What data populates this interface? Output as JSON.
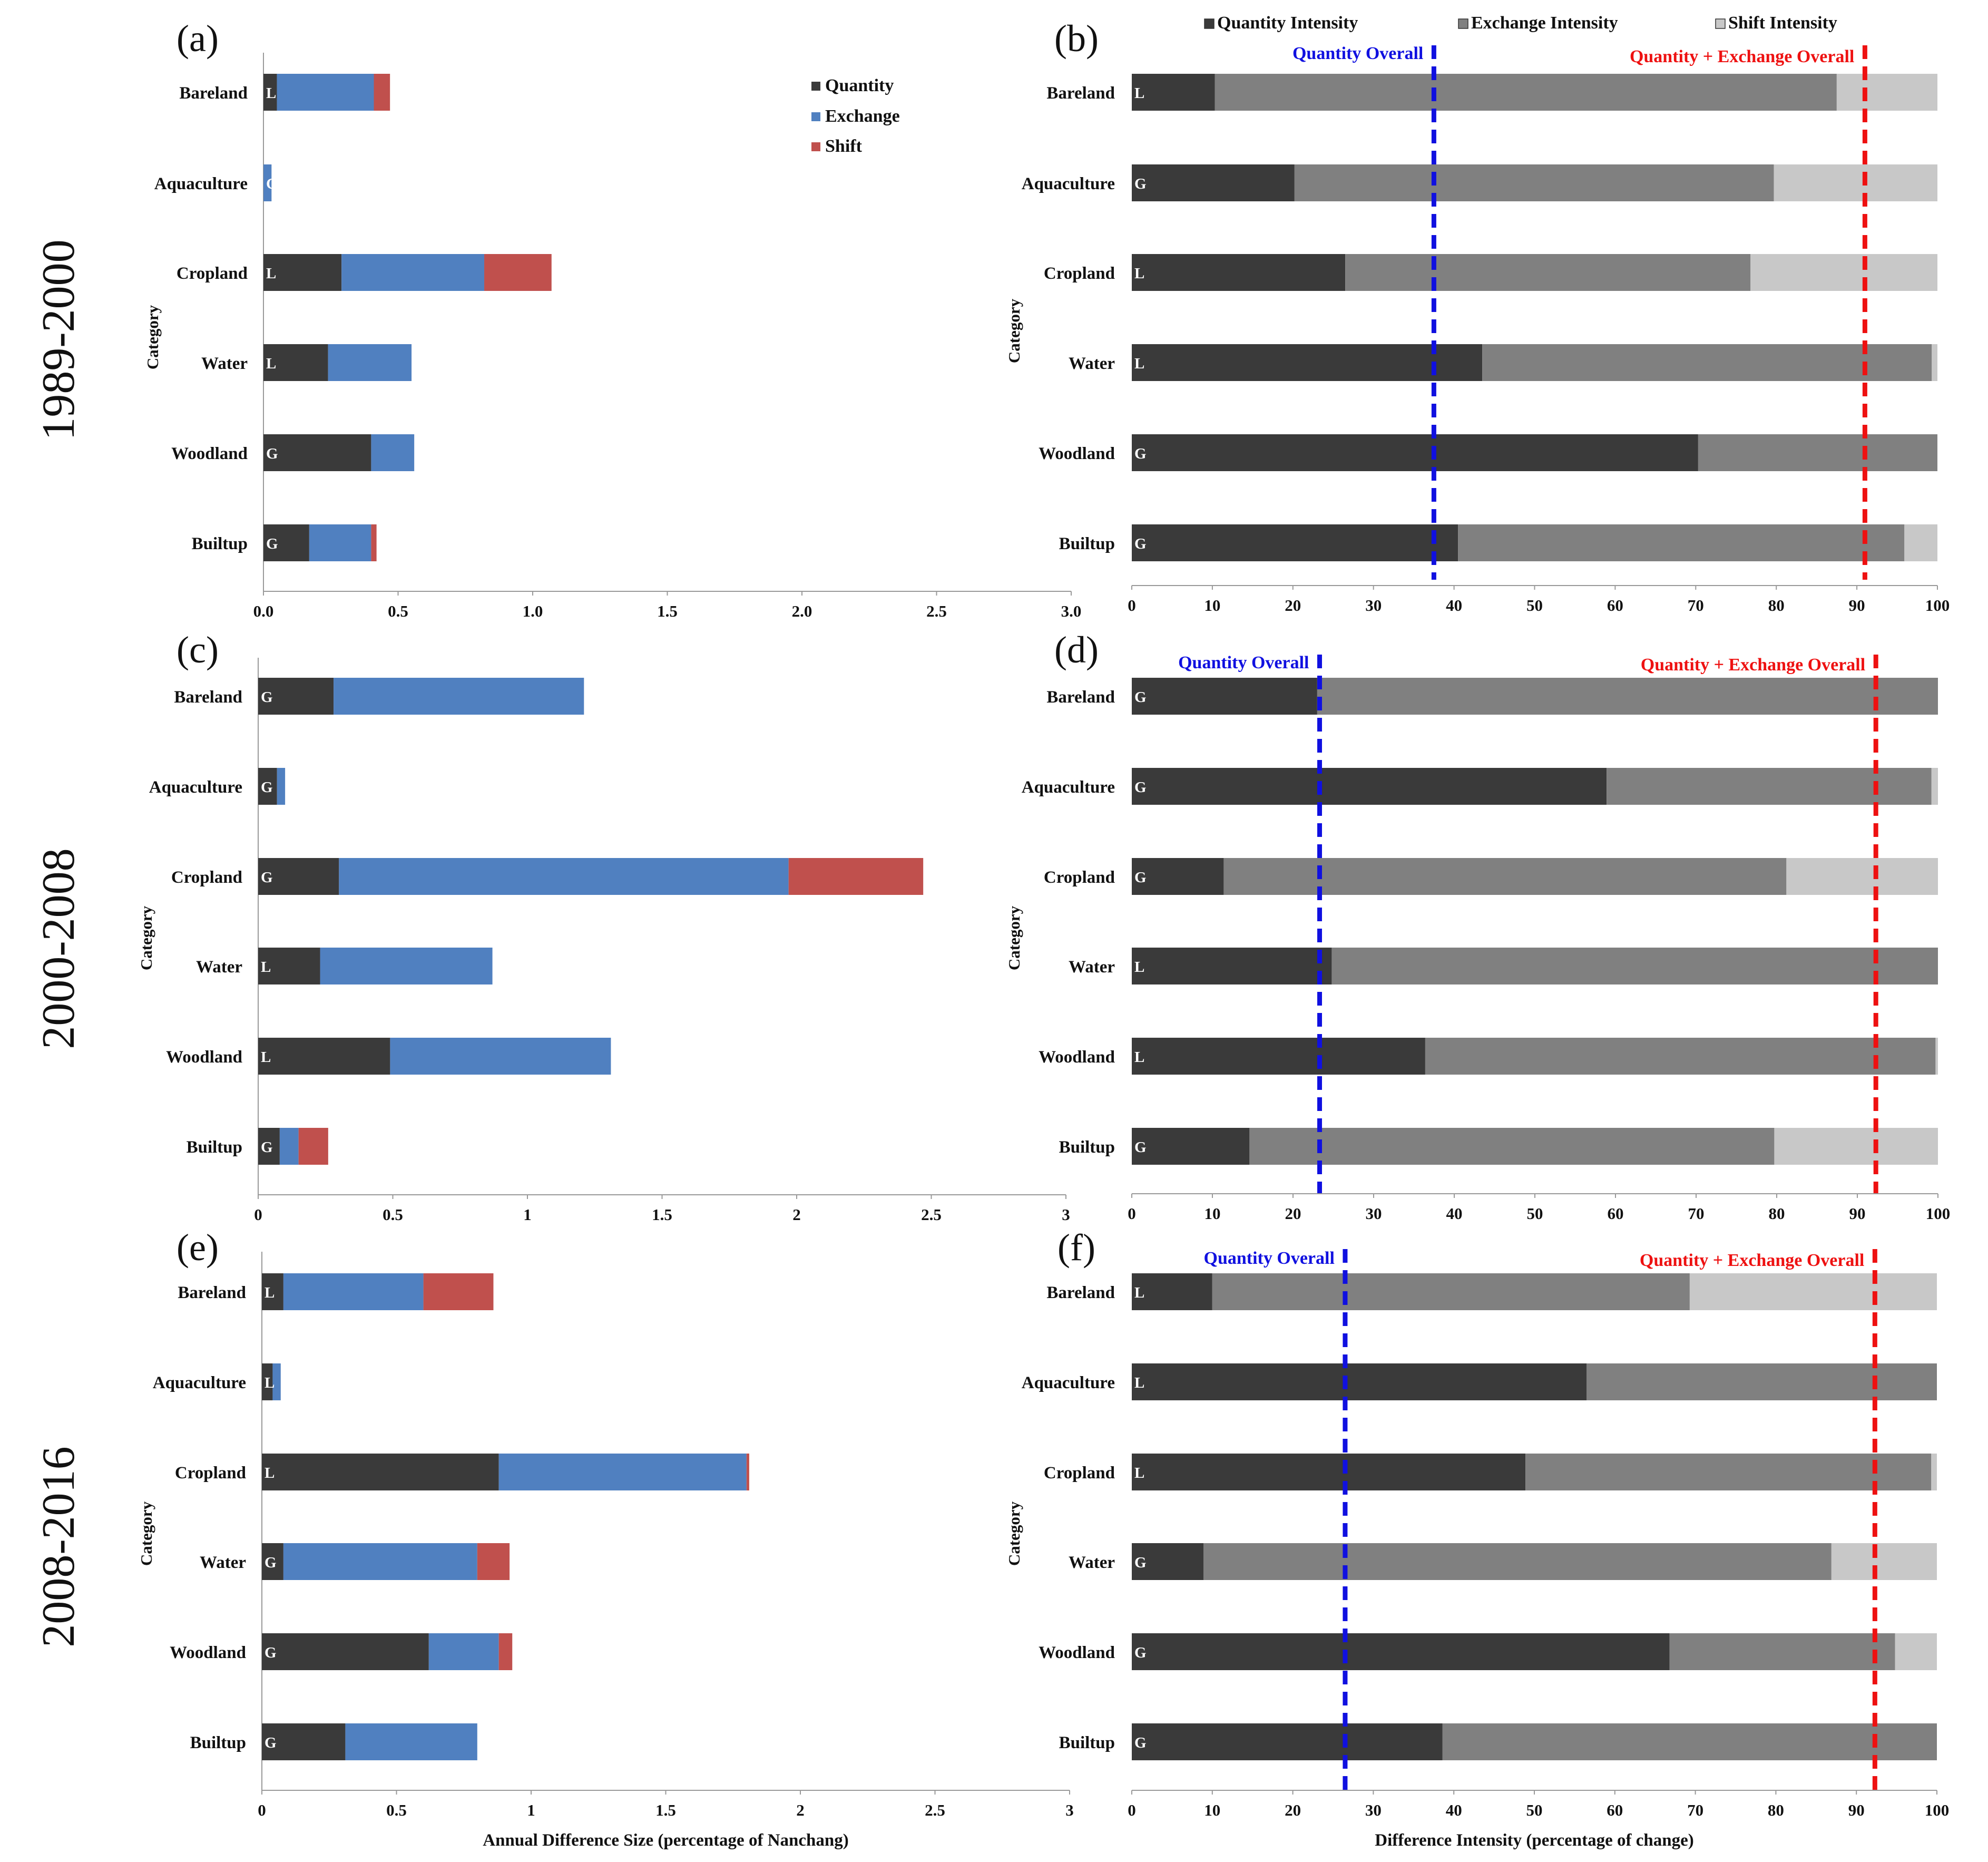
{
  "periods": [
    "1989-2000",
    "2000-2008",
    "2008-2016"
  ],
  "colors": {
    "quantity": "#3a3a3a",
    "exchange": "#5080c0",
    "shift": "#c0504d",
    "quantity_intensity": "#3a3a3a",
    "exchange_intensity": "#808080",
    "shift_intensity": "#c8c8c8",
    "quantity_overall": "#1010e0",
    "quantity_exchange_overall": "#ee1111"
  },
  "size_legend": [
    "Quantity",
    "Exchange",
    "Shift"
  ],
  "intensity_legend": [
    "Quantity Intensity",
    "Exchange Intensity",
    "Shift Intensity"
  ],
  "size_axis_title": "Annual Difference Size (percentage of Nanchang)",
  "intensity_axis_title": "Difference Intensity (percentage of change)",
  "y_axis_title": "Category",
  "chart_data": [
    {
      "panel": "(a)",
      "period": "1989-2000",
      "type": "bar",
      "stacked": true,
      "orientation": "horizontal",
      "categories": [
        "Bareland",
        "Aquaculture",
        "Cropland",
        "Water",
        "Woodland",
        "Builtup"
      ],
      "gain_loss": [
        "L",
        "G",
        "L",
        "L",
        "G",
        "G"
      ],
      "series": [
        {
          "name": "Quantity",
          "values": [
            0.05,
            0.0,
            0.29,
            0.24,
            0.4,
            0.17
          ]
        },
        {
          "name": "Exchange",
          "values": [
            0.36,
            0.03,
            0.53,
            0.31,
            0.16,
            0.23
          ]
        },
        {
          "name": "Shift",
          "values": [
            0.06,
            0.0,
            0.25,
            0.0,
            0.0,
            0.02
          ]
        }
      ],
      "xlim": [
        0,
        3
      ],
      "xticks": [
        "0.0",
        "0.5",
        "1.0",
        "1.5",
        "2.0",
        "2.5",
        "3.0"
      ],
      "legend": "top-right"
    },
    {
      "panel": "(b)",
      "period": "1989-2000",
      "type": "bar",
      "stacked": true,
      "orientation": "horizontal",
      "categories": [
        "Bareland",
        "Aquaculture",
        "Cropland",
        "Water",
        "Woodland",
        "Builtup"
      ],
      "gain_loss": [
        "L",
        "G",
        "L",
        "L",
        "G",
        "G"
      ],
      "series": [
        {
          "name": "Quantity Intensity",
          "values": [
            10.3,
            20.2,
            26.5,
            43.5,
            70.3,
            40.5
          ]
        },
        {
          "name": "Exchange Intensity",
          "values": [
            77.2,
            59.5,
            50.3,
            55.8,
            29.7,
            55.4
          ]
        },
        {
          "name": "Shift Intensity",
          "values": [
            12.5,
            20.3,
            23.2,
            0.7,
            0.0,
            4.1
          ]
        }
      ],
      "reference_lines": [
        {
          "label": "Quantity Overall",
          "value": 37.5
        },
        {
          "label": "Quantity + Exchange Overall",
          "value": 91
        }
      ],
      "xlim": [
        0,
        100
      ],
      "xticks": [
        "0",
        "10",
        "20",
        "30",
        "40",
        "50",
        "60",
        "70",
        "80",
        "90",
        "100"
      ],
      "legend": "top"
    },
    {
      "panel": "(c)",
      "period": "2000-2008",
      "type": "bar",
      "stacked": true,
      "orientation": "horizontal",
      "categories": [
        "Bareland",
        "Aquaculture",
        "Cropland",
        "Water",
        "Woodland",
        "Builtup"
      ],
      "gain_loss": [
        "G",
        "G",
        "G",
        "L",
        "L",
        "G"
      ],
      "series": [
        {
          "name": "Quantity",
          "values": [
            0.28,
            0.07,
            0.3,
            0.23,
            0.49,
            0.08
          ]
        },
        {
          "name": "Exchange",
          "values": [
            0.93,
            0.03,
            1.67,
            0.64,
            0.82,
            0.07
          ]
        },
        {
          "name": "Shift",
          "values": [
            0.0,
            0.0,
            0.5,
            0.0,
            0.0,
            0.11
          ]
        }
      ],
      "xlim": [
        0,
        3
      ],
      "xticks": [
        "0",
        "0.5",
        "1",
        "1.5",
        "2",
        "2.5",
        "3"
      ],
      "legend": "none"
    },
    {
      "panel": "(d)",
      "period": "2000-2008",
      "type": "bar",
      "stacked": true,
      "orientation": "horizontal",
      "categories": [
        "Bareland",
        "Aquaculture",
        "Cropland",
        "Water",
        "Woodland",
        "Builtup"
      ],
      "gain_loss": [
        "G",
        "G",
        "G",
        "L",
        "L",
        "G"
      ],
      "series": [
        {
          "name": "Quantity Intensity",
          "values": [
            23.0,
            58.9,
            11.4,
            24.8,
            36.4,
            14.6
          ]
        },
        {
          "name": "Exchange Intensity",
          "values": [
            77.0,
            40.3,
            69.8,
            75.2,
            63.3,
            65.1
          ]
        },
        {
          "name": "Shift Intensity",
          "values": [
            0.0,
            0.8,
            18.8,
            0.0,
            0.3,
            20.3
          ]
        }
      ],
      "reference_lines": [
        {
          "label": "Quantity Overall",
          "value": 23.3
        },
        {
          "label": "Quantity + Exchange Overall",
          "value": 92.3
        }
      ],
      "xlim": [
        0,
        100
      ],
      "xticks": [
        "0",
        "10",
        "20",
        "30",
        "40",
        "50",
        "60",
        "70",
        "80",
        "90",
        "100"
      ],
      "legend": "none"
    },
    {
      "panel": "(e)",
      "period": "2008-2016",
      "type": "bar",
      "stacked": true,
      "orientation": "horizontal",
      "categories": [
        "Bareland",
        "Aquaculture",
        "Cropland",
        "Water",
        "Woodland",
        "Builtup"
      ],
      "gain_loss": [
        "L",
        "L",
        "L",
        "G",
        "G",
        "G"
      ],
      "series": [
        {
          "name": "Quantity",
          "values": [
            0.08,
            0.04,
            0.88,
            0.08,
            0.62,
            0.31
          ]
        },
        {
          "name": "Exchange",
          "values": [
            0.52,
            0.03,
            0.92,
            0.72,
            0.26,
            0.49
          ]
        },
        {
          "name": "Shift",
          "values": [
            0.26,
            0.0,
            0.01,
            0.12,
            0.05,
            0.0
          ]
        }
      ],
      "xlim": [
        0,
        3
      ],
      "xticks": [
        "0",
        "0.5",
        "1",
        "1.5",
        "2",
        "2.5",
        "3"
      ],
      "xlabel": "Annual Difference Size (percentage of Nanchang)",
      "legend": "none"
    },
    {
      "panel": "(f)",
      "period": "2008-2016",
      "type": "bar",
      "stacked": true,
      "orientation": "horizontal",
      "categories": [
        "Bareland",
        "Aquaculture",
        "Cropland",
        "Water",
        "Woodland",
        "Builtup"
      ],
      "gain_loss": [
        "L",
        "L",
        "L",
        "G",
        "G",
        "G"
      ],
      "series": [
        {
          "name": "Quantity Intensity",
          "values": [
            10.0,
            56.5,
            48.9,
            8.9,
            66.8,
            38.6
          ]
        },
        {
          "name": "Exchange Intensity",
          "values": [
            59.3,
            43.5,
            50.4,
            78.0,
            28.0,
            61.4
          ]
        },
        {
          "name": "Shift Intensity",
          "values": [
            30.7,
            0.0,
            0.7,
            13.1,
            5.2,
            0.0
          ]
        }
      ],
      "reference_lines": [
        {
          "label": "Quantity Overall",
          "value": 26.5
        },
        {
          "label": "Quantity + Exchange Overall",
          "value": 92.3
        }
      ],
      "xlim": [
        0,
        100
      ],
      "xticks": [
        "0",
        "10",
        "20",
        "30",
        "40",
        "50",
        "60",
        "70",
        "80",
        "90",
        "100"
      ],
      "xlabel": "Difference Intensity (percentage of change)",
      "legend": "none"
    }
  ]
}
